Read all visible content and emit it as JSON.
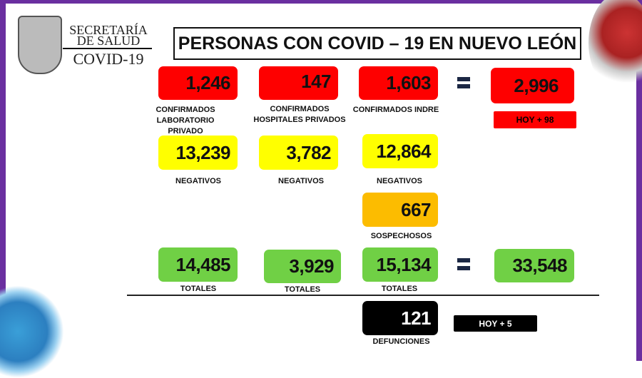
{
  "header": {
    "logo_line1": "SECRETARÍA",
    "logo_line2": "DE SALUD",
    "logo_line3": "COVID-19",
    "title": "PERSONAS CON COVID – 19 EN NUEVO LEÓN"
  },
  "colors": {
    "confirmed": "#fe0000",
    "negative": "#ffff00",
    "suspect": "#fcbc00",
    "total": "#70d045",
    "deaths": "#000000",
    "frame": "#6a2fa0"
  },
  "columns": [
    {
      "confirmed": "1,246",
      "confirmed_label": "CONFIRMADOS LABORATORIO PRIVADO",
      "negative": "13,239",
      "negative_label": "NEGATIVOS",
      "total": "14,485",
      "total_label": "TOTALES"
    },
    {
      "confirmed": "147",
      "confirmed_label": "CONFIRMADOS HOSPITALES PRIVADOS",
      "negative": "3,782",
      "negative_label": "NEGATIVOS",
      "total": "3,929",
      "total_label": "TOTALES"
    },
    {
      "confirmed": "1,603",
      "confirmed_label": "CONFIRMADOS INDRE",
      "negative": "12,864",
      "negative_label": "NEGATIVOS",
      "suspect": "667",
      "suspect_label": "SOSPECHOSOS",
      "total": "15,134",
      "total_label": "TOTALES"
    }
  ],
  "summary": {
    "confirmed_total": "2,996",
    "confirmed_today": "HOY + 98",
    "grand_total": "33,548",
    "deaths": "121",
    "deaths_label": "DEFUNCIONES",
    "deaths_today": "HOY + 5"
  }
}
